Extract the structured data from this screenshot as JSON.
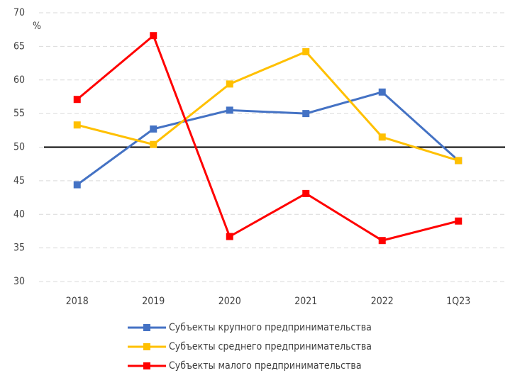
{
  "chart_data": {
    "type": "line",
    "ylabel": "%",
    "categories": [
      "2018",
      "2019",
      "2020",
      "2021",
      "2022",
      "1Q23"
    ],
    "series": [
      {
        "name": "Субъекты крупного предпринимательства",
        "color": "#4472c4",
        "values": [
          44.4,
          52.7,
          55.5,
          55.0,
          58.2,
          48.0
        ]
      },
      {
        "name": "Субъекты среднего предпринимательства",
        "color": "#ffc000",
        "values": [
          53.3,
          50.4,
          59.4,
          64.2,
          51.5,
          48.0
        ]
      },
      {
        "name": "Субъекты малого предпринимательства",
        "color": "#ff0000",
        "values": [
          57.1,
          66.6,
          36.7,
          43.1,
          36.1,
          39.0
        ]
      }
    ],
    "reference_line": 50,
    "ylim": [
      30,
      70
    ],
    "yticks": [
      30,
      35,
      40,
      45,
      50,
      55,
      60,
      65,
      70
    ],
    "grid": true,
    "legend": "bottom"
  }
}
